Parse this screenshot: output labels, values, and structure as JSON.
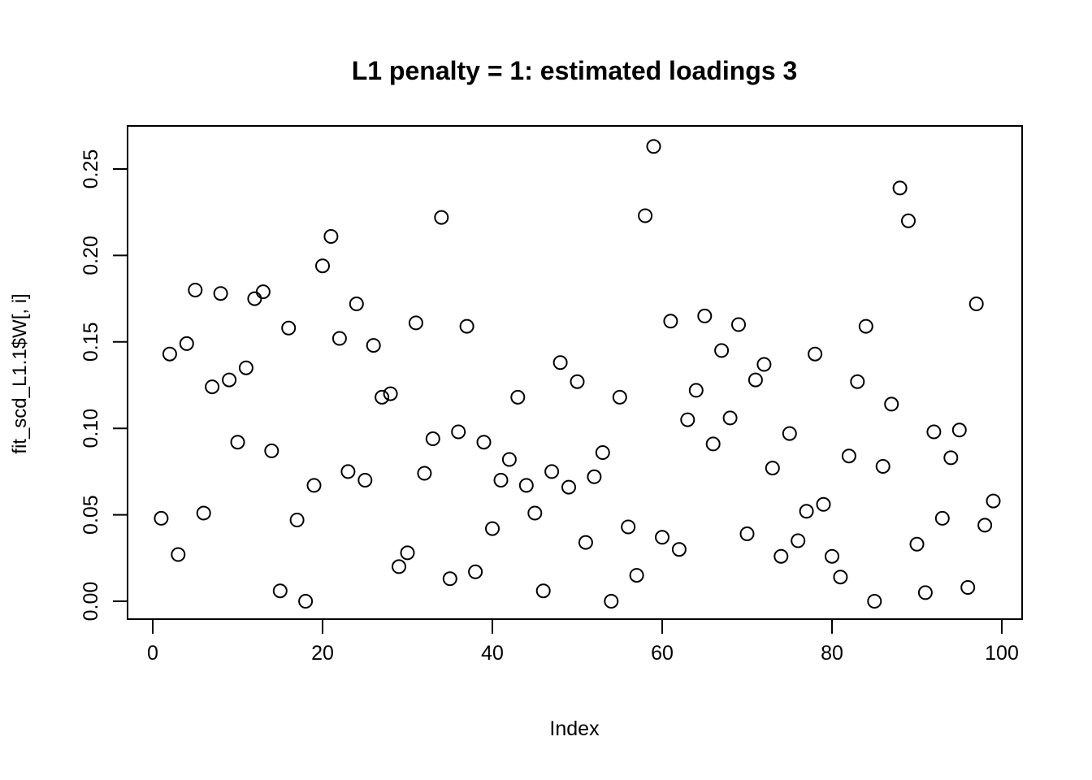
{
  "chart_data": {
    "type": "scatter",
    "title": "L1 penalty = 1: estimated loadings 3",
    "xlabel": "Index",
    "ylabel": "fit_scd_L1.1$W[, i]",
    "marker": "open-circle",
    "marker_color": "#000000",
    "background_color": "#ffffff",
    "grid": false,
    "legend": null,
    "xlim": [
      -2.9,
      102.4
    ],
    "ylim": [
      -0.0105,
      0.2749
    ],
    "x_ticks": [
      0,
      20,
      40,
      60,
      80,
      100
    ],
    "y_ticks": [
      "0.00",
      "0.05",
      "0.10",
      "0.15",
      "0.20",
      "0.25"
    ],
    "x": [
      1,
      2,
      3,
      4,
      5,
      6,
      7,
      8,
      9,
      10,
      11,
      12,
      13,
      14,
      15,
      16,
      17,
      18,
      19,
      20,
      21,
      22,
      23,
      24,
      25,
      26,
      27,
      28,
      29,
      30,
      31,
      32,
      33,
      34,
      35,
      36,
      37,
      38,
      39,
      40,
      41,
      42,
      43,
      44,
      45,
      46,
      47,
      48,
      49,
      50,
      51,
      52,
      53,
      54,
      55,
      56,
      57,
      58,
      59,
      60,
      61,
      62,
      63,
      64,
      65,
      66,
      67,
      68,
      69,
      70,
      71,
      72,
      73,
      74,
      75,
      76,
      77,
      78,
      79,
      80,
      81,
      82,
      83,
      84,
      85,
      86,
      87,
      88,
      89,
      90,
      91,
      92,
      93,
      94,
      95,
      96,
      97,
      98,
      99
    ],
    "y": [
      0.048,
      0.143,
      0.027,
      0.149,
      0.18,
      0.051,
      0.124,
      0.178,
      0.128,
      0.092,
      0.135,
      0.175,
      0.179,
      0.087,
      0.006,
      0.158,
      0.047,
      0.0,
      0.067,
      0.194,
      0.211,
      0.152,
      0.075,
      0.172,
      0.07,
      0.148,
      0.118,
      0.12,
      0.02,
      0.028,
      0.161,
      0.074,
      0.094,
      0.222,
      0.013,
      0.098,
      0.159,
      0.017,
      0.092,
      0.042,
      0.07,
      0.082,
      0.118,
      0.067,
      0.051,
      0.006,
      0.075,
      0.138,
      0.066,
      0.127,
      0.034,
      0.072,
      0.086,
      0.0,
      0.118,
      0.043,
      0.015,
      0.223,
      0.263,
      0.037,
      0.162,
      0.03,
      0.105,
      0.122,
      0.165,
      0.091,
      0.145,
      0.106,
      0.16,
      0.039,
      0.128,
      0.137,
      0.077,
      0.026,
      0.097,
      0.035,
      0.052,
      0.143,
      0.056,
      0.026,
      0.014,
      0.084,
      0.127,
      0.159,
      0.0,
      0.078,
      0.114,
      0.239,
      0.22,
      0.033,
      0.005,
      0.098,
      0.048,
      0.083,
      0.099,
      0.008,
      0.172,
      0.044,
      0.058
    ]
  }
}
